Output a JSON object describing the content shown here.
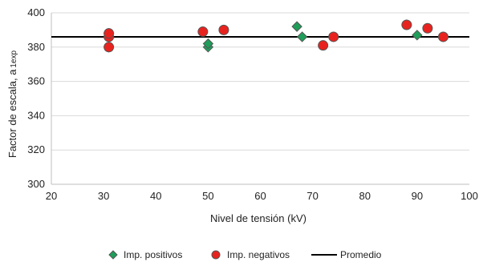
{
  "chart_data": {
    "type": "scatter",
    "title": "",
    "xlabel": "Nivel de tensión (kV)",
    "ylabel": "Factor de escala, a",
    "ylabel_sub": "1exp",
    "xlim": [
      20,
      100
    ],
    "ylim": [
      300,
      400
    ],
    "xticks": [
      20,
      30,
      40,
      50,
      60,
      70,
      80,
      90,
      100
    ],
    "yticks": [
      300,
      320,
      340,
      360,
      380,
      400
    ],
    "grid": "horizontal",
    "legend_position": "bottom",
    "series": [
      {
        "name": "Imp. positivos",
        "marker": "diamond",
        "color": "#1e9e5a",
        "points": [
          {
            "x": 31,
            "y": 380
          },
          {
            "x": 31,
            "y": 386
          },
          {
            "x": 31,
            "y": 388
          },
          {
            "x": 50,
            "y": 380
          },
          {
            "x": 50,
            "y": 382
          },
          {
            "x": 67,
            "y": 392
          },
          {
            "x": 68,
            "y": 386
          },
          {
            "x": 88,
            "y": 393
          },
          {
            "x": 90,
            "y": 387
          }
        ]
      },
      {
        "name": "Imp. negativos",
        "marker": "circle",
        "color": "#e8231f",
        "points": [
          {
            "x": 31,
            "y": 380
          },
          {
            "x": 31,
            "y": 386
          },
          {
            "x": 31,
            "y": 388
          },
          {
            "x": 49,
            "y": 389
          },
          {
            "x": 53,
            "y": 390
          },
          {
            "x": 72,
            "y": 381
          },
          {
            "x": 74,
            "y": 386
          },
          {
            "x": 88,
            "y": 393
          },
          {
            "x": 92,
            "y": 391
          },
          {
            "x": 95,
            "y": 386
          }
        ]
      },
      {
        "name": "Promedio",
        "type": "hline",
        "color": "#000000",
        "y": 386
      }
    ]
  }
}
